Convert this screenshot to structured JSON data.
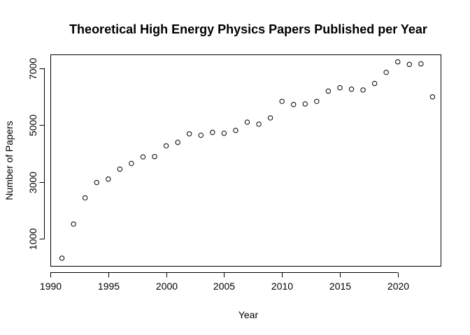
{
  "chart_data": {
    "type": "scatter",
    "title": "Theoretical High Energy Physics Papers Published per Year",
    "xlabel": "Year",
    "ylabel": "Number of Papers",
    "xlim": [
      1990,
      2023.7
    ],
    "ylim": [
      50,
      7480
    ],
    "xticks": [
      1990,
      1995,
      2000,
      2005,
      2010,
      2015,
      2020
    ],
    "yticks": [
      1000,
      3000,
      5000,
      7000
    ],
    "grid": false,
    "marker": "open-circle",
    "x": [
      1991,
      1992,
      1993,
      1994,
      1995,
      1996,
      1997,
      1998,
      1999,
      2000,
      2001,
      2002,
      2003,
      2004,
      2005,
      2006,
      2007,
      2008,
      2009,
      2010,
      2011,
      2012,
      2013,
      2014,
      2015,
      2016,
      2017,
      2018,
      2019,
      2020,
      2021,
      2022,
      2023
    ],
    "y": [
      320,
      1520,
      2440,
      2980,
      3100,
      3450,
      3650,
      3880,
      3890,
      4270,
      4390,
      4690,
      4640,
      4740,
      4710,
      4810,
      5100,
      5030,
      5250,
      5830,
      5720,
      5740,
      5830,
      6190,
      6310,
      6260,
      6230,
      6460,
      6850,
      7220,
      7130,
      7150,
      5990
    ]
  }
}
